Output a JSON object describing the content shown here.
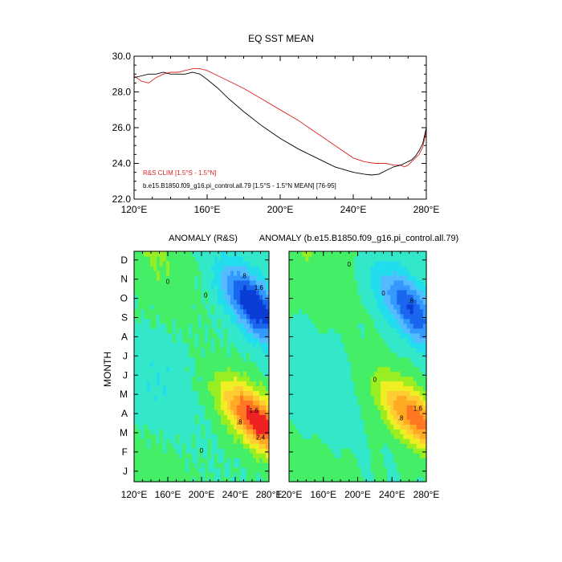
{
  "chart_data": [
    {
      "type": "line",
      "title": "EQ SST MEAN",
      "xlabel": "",
      "ylabel": "",
      "xlim": [
        120,
        280
      ],
      "ylim": [
        22,
        30
      ],
      "x_ticks": [
        "120°E",
        "160°E",
        "200°E",
        "240°E",
        "280°E"
      ],
      "x_tick_values": [
        120,
        160,
        200,
        240,
        280
      ],
      "y_ticks": [
        "22.0",
        "24.0",
        "26.0",
        "28.0",
        "30.0"
      ],
      "y_tick_values": [
        22,
        24,
        26,
        28,
        30
      ],
      "grid": false,
      "legend_placement": "bottom-left",
      "series": [
        {
          "name": "R&S CLIM [1.5°S - 1.5°N]",
          "color": "#dd2222",
          "x": [
            120,
            124,
            128,
            132,
            136,
            140,
            144,
            148,
            152,
            156,
            160,
            166,
            172,
            180,
            190,
            200,
            210,
            220,
            230,
            240,
            246,
            252,
            258,
            262,
            266,
            268,
            270,
            272,
            274,
            276,
            278,
            280
          ],
          "y": [
            28.9,
            28.6,
            28.5,
            28.8,
            29.0,
            29.1,
            29.1,
            29.2,
            29.3,
            29.3,
            29.2,
            28.9,
            28.6,
            28.2,
            27.6,
            27.0,
            26.4,
            25.7,
            25.0,
            24.3,
            24.1,
            24.0,
            24.0,
            23.9,
            23.9,
            23.8,
            23.9,
            24.1,
            24.3,
            24.5,
            24.9,
            25.8
          ]
        },
        {
          "name": "b.e15.B1850.f09_g16.pi_control.all.79 [1.5°S - 1.5°N MEAN] [76-95]",
          "color": "#000000",
          "x": [
            120,
            124,
            128,
            132,
            136,
            140,
            144,
            148,
            152,
            156,
            160,
            166,
            172,
            180,
            190,
            200,
            210,
            220,
            230,
            240,
            246,
            250,
            254,
            258,
            262,
            266,
            268,
            270,
            272,
            274,
            276,
            278,
            280
          ],
          "y": [
            28.8,
            28.9,
            29.0,
            29.0,
            29.1,
            29.0,
            29.0,
            29.0,
            29.1,
            29.0,
            28.7,
            28.2,
            27.6,
            26.9,
            26.1,
            25.4,
            24.8,
            24.3,
            23.8,
            23.5,
            23.4,
            23.35,
            23.4,
            23.6,
            23.8,
            23.9,
            24.0,
            24.1,
            24.2,
            24.4,
            24.7,
            25.1,
            26.0
          ]
        }
      ]
    },
    {
      "type": "heatmap",
      "title": "ANOMALY (R&S)",
      "ylabel": "MONTH",
      "xlim": [
        120,
        280
      ],
      "x_ticks": [
        "120°E",
        "160°E",
        "200°E",
        "240°E",
        "280°E"
      ],
      "x_tick_values": [
        120,
        160,
        200,
        240,
        280
      ],
      "y_ticks": [
        "J",
        "F",
        "M",
        "A",
        "M",
        "J",
        "J",
        "A",
        "S",
        "O",
        "N",
        "D"
      ],
      "levels": [
        -2.4,
        -2.0,
        -1.6,
        -1.2,
        -0.8,
        -0.4,
        0,
        0.4,
        0.8,
        1.2,
        1.6,
        2.0,
        2.4
      ],
      "warm_anomaly": {
        "center_lon": 266,
        "center_month": 3.2,
        "amplitude": 2.8
      },
      "cold_anomaly": {
        "center_lon": 262,
        "center_month": 9.2,
        "amplitude": -2.5
      },
      "contour_labels": [
        "0",
        "0",
        ".8",
        "1.6",
        "2.4",
        ".8",
        "1.6",
        "0"
      ]
    },
    {
      "type": "heatmap",
      "title": "ANOMALY (b.e15.B1850.f09_g16.pi_control.all.79)",
      "xlim": [
        120,
        280
      ],
      "x_ticks": [
        "120°E",
        "160°E",
        "200°E",
        "240°E",
        "280°E"
      ],
      "x_tick_values": [
        120,
        160,
        200,
        240,
        280
      ],
      "y_ticks": [
        "J",
        "F",
        "M",
        "A",
        "M",
        "J",
        "J",
        "A",
        "S",
        "O",
        "N",
        "D"
      ],
      "levels": [
        -2.4,
        -2.0,
        -1.6,
        -1.2,
        -0.8,
        -0.4,
        0,
        0.4,
        0.8,
        1.2,
        1.6,
        2.0,
        2.4
      ],
      "warm_anomaly": {
        "center_lon": 266,
        "center_month": 3.4,
        "amplitude": 2.2
      },
      "cold_anomaly": {
        "center_lon": 262,
        "center_month": 9.0,
        "amplitude": -2.0
      },
      "contour_labels": [
        "0",
        "0",
        ".8",
        "1.6",
        ".8",
        "0"
      ]
    }
  ],
  "colors": {
    "palette": [
      "#0a3dd6",
      "#1a66ee",
      "#3399ff",
      "#55bbff",
      "#22ddee",
      "#33e8c8",
      "#44ee66",
      "#99ee22",
      "#eeee22",
      "#ffcc33",
      "#ffaa22",
      "#ff7722",
      "#ee2222"
    ]
  }
}
